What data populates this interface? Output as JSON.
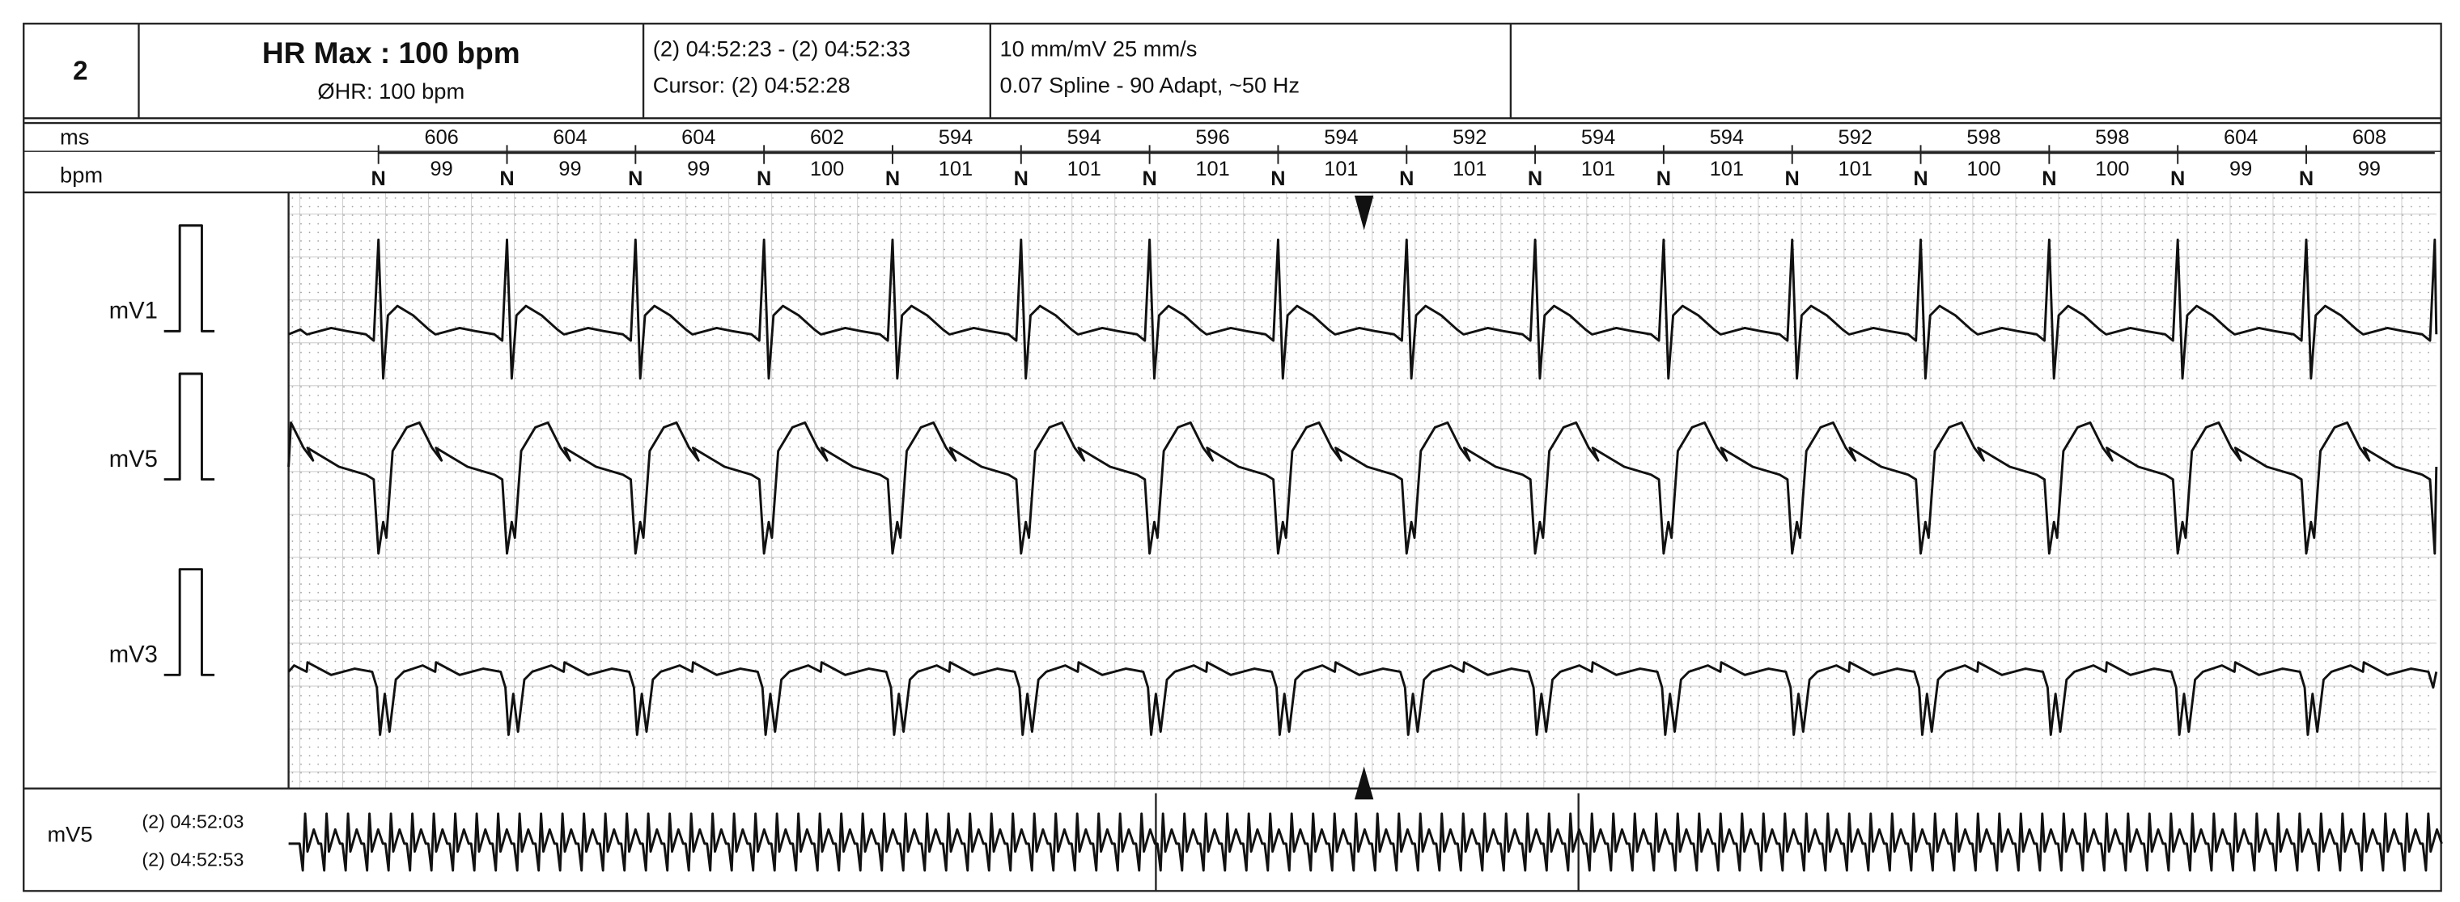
{
  "header": {
    "page": "2",
    "title": "HR Max : 100 bpm",
    "avg_hr": "ØHR: 100 bpm",
    "range": "(2) 04:52:23 - (2) 04:52:33",
    "cursor": "Cursor:  (2) 04:52:28",
    "gain": "10 mm/mV   25 mm/s",
    "filter": "0.07 Spline - 90 Adapt, ~50 Hz"
  },
  "measures": {
    "ms_label": "ms",
    "bpm_label": "bpm",
    "ms": [
      606,
      604,
      604,
      602,
      594,
      594,
      596,
      594,
      592,
      594,
      594,
      592,
      598,
      598,
      604,
      608
    ],
    "bpm": [
      99,
      99,
      99,
      100,
      101,
      101,
      101,
      101,
      101,
      101,
      101,
      101,
      100,
      100,
      99,
      99
    ],
    "beats": [
      "N",
      "N",
      "N",
      "N",
      "N",
      "N",
      "N",
      "N",
      "N",
      "N",
      "N",
      "N",
      "N",
      "N",
      "N",
      "N"
    ]
  },
  "leads": [
    "mV1",
    "mV5",
    "mV3"
  ],
  "rhythm": {
    "lead": "mV5",
    "start": "(2) 04:52:03",
    "end": "(2) 04:52:53"
  }
}
